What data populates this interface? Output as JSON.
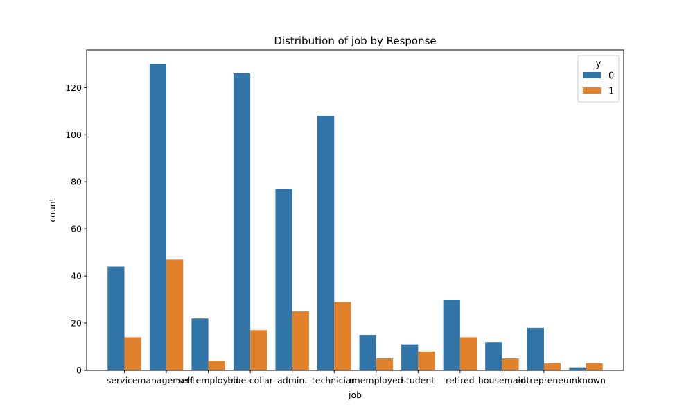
{
  "chart_data": {
    "type": "bar",
    "title": "Distribution of job by Response",
    "xlabel": "job",
    "ylabel": "count",
    "ylim": [
      0,
      136
    ],
    "yticks": [
      0,
      20,
      40,
      60,
      80,
      100,
      120
    ],
    "grid": false,
    "legend": {
      "title": "y",
      "placement": "top-right"
    },
    "categories": [
      "services",
      "management",
      "self-employed",
      "blue-collar",
      "admin.",
      "technician",
      "unemployed",
      "student",
      "retired",
      "housemaid",
      "entrepreneur",
      "unknown"
    ],
    "series": [
      {
        "name": "0",
        "color": "#3174a8",
        "values": [
          44,
          130,
          22,
          126,
          77,
          108,
          15,
          11,
          30,
          12,
          18,
          1
        ]
      },
      {
        "name": "1",
        "color": "#e1812c",
        "values": [
          14,
          47,
          4,
          17,
          25,
          29,
          5,
          8,
          14,
          5,
          3,
          3
        ]
      }
    ]
  }
}
